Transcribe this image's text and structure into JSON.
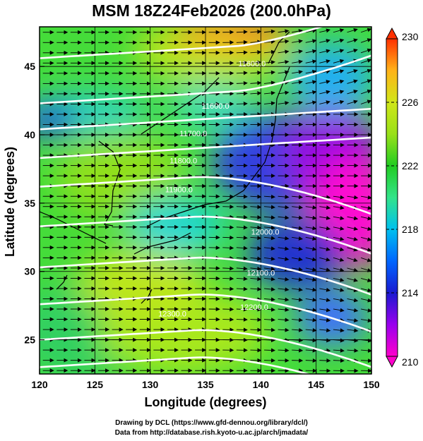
{
  "title": "MSM 18Z24Feb2026 (200.0hPa)",
  "map": {
    "xlabel": "Longitude (degrees)",
    "ylabel": "Latitude  (degrees)",
    "x_ticks": [
      "120",
      "125",
      "130",
      "135",
      "140",
      "145",
      "150"
    ],
    "y_ticks": [
      "25",
      "30",
      "35",
      "40",
      "45"
    ],
    "lon_range": [
      120,
      150
    ],
    "lat_range": [
      22.5,
      47.9
    ]
  },
  "contours": [
    {
      "label": "11600.0",
      "lon": 139.2,
      "lat": 45.0
    },
    {
      "label": "11600.0",
      "lon": 135.9,
      "lat": 41.9
    },
    {
      "label": "11700.0",
      "lon": 133.9,
      "lat": 39.9
    },
    {
      "label": "11800.0",
      "lon": 133.0,
      "lat": 37.9
    },
    {
      "label": "11900.0",
      "lon": 132.6,
      "lat": 35.8
    },
    {
      "label": "12000.0",
      "lon": 140.4,
      "lat": 32.7
    },
    {
      "label": "12100.0",
      "lon": 140.0,
      "lat": 29.7
    },
    {
      "label": "12200.0",
      "lon": 139.4,
      "lat": 27.2
    },
    {
      "label": "12300.0",
      "lon": 132.0,
      "lat": 26.7
    }
  ],
  "colorbar": {
    "ticks": [
      "230",
      "226",
      "222",
      "218",
      "214",
      "210"
    ],
    "min": 210,
    "max": 230,
    "colors": [
      "#ff00cc",
      "#9900ee",
      "#1a1ad0",
      "#0066ff",
      "#00c0ee",
      "#33e38a",
      "#22cc22",
      "#99e01a",
      "#d0e61a",
      "#ffb31a",
      "#ff3000"
    ]
  },
  "footer": {
    "line1": "Drawing by DCL (https://www.gfd-dennou.org/library/dcl/)",
    "line2": "Data from http://database.rish.kyoto-u.ac.jp/arch/jmadata/"
  }
}
